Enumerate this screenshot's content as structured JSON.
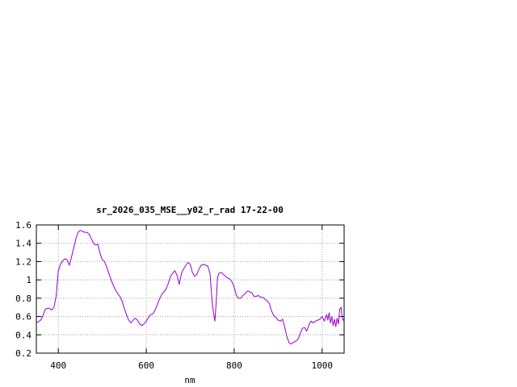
{
  "chart_data": {
    "type": "line",
    "title": "sr_2026_035_MSE__y02_r_rad 17-22-00",
    "xlabel": "nm",
    "ylabel": "",
    "xlim": [
      350,
      1050
    ],
    "ylim": [
      0.2,
      1.6
    ],
    "xticks": [
      400,
      600,
      800,
      1000
    ],
    "xtick_labels": [
      "400",
      "600",
      "800",
      "1000"
    ],
    "yticks": [
      0.2,
      0.4,
      0.6,
      0.8,
      1.0,
      1.2,
      1.4,
      1.6
    ],
    "ytick_labels": [
      "0.2",
      "0.4",
      "0.6",
      "0.8",
      "1",
      "1.2",
      "1.4",
      "1.6"
    ],
    "grid": true,
    "legend": "none",
    "colors": {
      "line": "#9400d3",
      "grid": "#a0a0a0",
      "axes": "#000000"
    },
    "series": [
      {
        "x": [
          350,
          360,
          365,
          370,
          375,
          380,
          385,
          390,
          395,
          400,
          405,
          410,
          415,
          420,
          425,
          430,
          435,
          440,
          445,
          450,
          455,
          460,
          465,
          470,
          475,
          480,
          485,
          490,
          495,
          500,
          505,
          510,
          515,
          520,
          525,
          530,
          535,
          540,
          545,
          550,
          555,
          560,
          565,
          570,
          575,
          580,
          585,
          590,
          595,
          600,
          605,
          610,
          615,
          620,
          625,
          630,
          635,
          640,
          645,
          650,
          655,
          660,
          665,
          670,
          675,
          680,
          685,
          690,
          695,
          700,
          705,
          710,
          715,
          720,
          725,
          730,
          735,
          740,
          745,
          750,
          753,
          756,
          759,
          762,
          765,
          768,
          771,
          775,
          780,
          785,
          790,
          795,
          800,
          805,
          810,
          815,
          820,
          825,
          830,
          835,
          840,
          845,
          850,
          855,
          860,
          865,
          870,
          875,
          880,
          885,
          890,
          895,
          900,
          905,
          910,
          915,
          920,
          925,
          930,
          935,
          940,
          945,
          950,
          955,
          960,
          965,
          970,
          975,
          980,
          985,
          990,
          995,
          1000,
          1005,
          1010,
          1013,
          1016,
          1019,
          1022,
          1025,
          1028,
          1031,
          1034,
          1037,
          1040,
          1043,
          1046,
          1050
        ],
        "y": [
          0.53,
          0.56,
          0.61,
          0.68,
          0.69,
          0.69,
          0.67,
          0.7,
          0.82,
          1.1,
          1.17,
          1.21,
          1.23,
          1.22,
          1.16,
          1.25,
          1.35,
          1.45,
          1.52,
          1.54,
          1.53,
          1.52,
          1.52,
          1.5,
          1.45,
          1.4,
          1.38,
          1.39,
          1.29,
          1.22,
          1.2,
          1.14,
          1.07,
          1.0,
          0.94,
          0.89,
          0.85,
          0.82,
          0.77,
          0.69,
          0.62,
          0.56,
          0.53,
          0.56,
          0.58,
          0.56,
          0.52,
          0.5,
          0.52,
          0.55,
          0.59,
          0.62,
          0.63,
          0.67,
          0.73,
          0.79,
          0.84,
          0.87,
          0.9,
          0.96,
          1.04,
          1.07,
          1.1,
          1.05,
          0.95,
          1.07,
          1.12,
          1.16,
          1.19,
          1.17,
          1.08,
          1.04,
          1.06,
          1.12,
          1.16,
          1.17,
          1.16,
          1.15,
          1.07,
          0.75,
          0.64,
          0.55,
          0.75,
          1.02,
          1.07,
          1.08,
          1.08,
          1.06,
          1.04,
          1.02,
          1.01,
          0.98,
          0.92,
          0.83,
          0.8,
          0.8,
          0.83,
          0.85,
          0.88,
          0.87,
          0.86,
          0.82,
          0.82,
          0.83,
          0.81,
          0.81,
          0.79,
          0.77,
          0.74,
          0.66,
          0.61,
          0.59,
          0.56,
          0.55,
          0.57,
          0.48,
          0.38,
          0.31,
          0.3,
          0.32,
          0.33,
          0.35,
          0.41,
          0.47,
          0.48,
          0.44,
          0.51,
          0.55,
          0.53,
          0.55,
          0.56,
          0.57,
          0.6,
          0.55,
          0.62,
          0.56,
          0.64,
          0.53,
          0.6,
          0.5,
          0.57,
          0.49,
          0.58,
          0.52,
          0.68,
          0.7,
          0.58,
          0.55
        ]
      }
    ]
  }
}
